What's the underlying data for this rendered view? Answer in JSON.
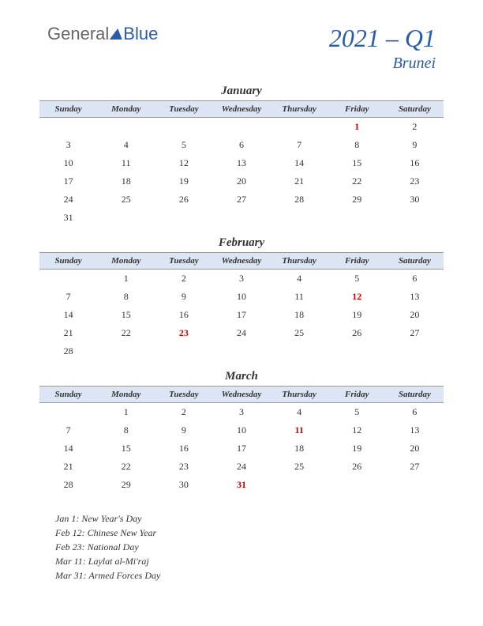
{
  "logo": {
    "text1": "General",
    "text2": "Blue"
  },
  "title": {
    "main": "2021 – Q1",
    "sub": "Brunei"
  },
  "colors": {
    "brand": "#2a5caa",
    "header_bg": "#dbe5f4",
    "holiday": "#cc0000",
    "text": "#333333",
    "border": "#999999"
  },
  "day_headers": [
    "Sunday",
    "Monday",
    "Tuesday",
    "Wednesday",
    "Thursday",
    "Friday",
    "Saturday"
  ],
  "months": [
    {
      "name": "January",
      "weeks": [
        [
          "",
          "",
          "",
          "",
          "",
          "1",
          "2"
        ],
        [
          "3",
          "4",
          "5",
          "6",
          "7",
          "8",
          "9"
        ],
        [
          "10",
          "11",
          "12",
          "13",
          "14",
          "15",
          "16"
        ],
        [
          "17",
          "18",
          "19",
          "20",
          "21",
          "22",
          "23"
        ],
        [
          "24",
          "25",
          "26",
          "27",
          "28",
          "29",
          "30"
        ],
        [
          "31",
          "",
          "",
          "",
          "",
          "",
          ""
        ]
      ],
      "holidays": [
        "1"
      ]
    },
    {
      "name": "February",
      "weeks": [
        [
          "",
          "1",
          "2",
          "3",
          "4",
          "5",
          "6"
        ],
        [
          "7",
          "8",
          "9",
          "10",
          "11",
          "12",
          "13"
        ],
        [
          "14",
          "15",
          "16",
          "17",
          "18",
          "19",
          "20"
        ],
        [
          "21",
          "22",
          "23",
          "24",
          "25",
          "26",
          "27"
        ],
        [
          "28",
          "",
          "",
          "",
          "",
          "",
          ""
        ]
      ],
      "holidays": [
        "12",
        "23"
      ]
    },
    {
      "name": "March",
      "weeks": [
        [
          "",
          "1",
          "2",
          "3",
          "4",
          "5",
          "6"
        ],
        [
          "7",
          "8",
          "9",
          "10",
          "11",
          "12",
          "13"
        ],
        [
          "14",
          "15",
          "16",
          "17",
          "18",
          "19",
          "20"
        ],
        [
          "21",
          "22",
          "23",
          "24",
          "25",
          "26",
          "27"
        ],
        [
          "28",
          "29",
          "30",
          "31",
          "",
          "",
          ""
        ]
      ],
      "holidays": [
        "11",
        "31"
      ]
    }
  ],
  "holiday_list": [
    "Jan 1: New Year's Day",
    "Feb 12: Chinese New Year",
    "Feb 23: National Day",
    "Mar 11: Laylat al-Mi'raj",
    "Mar 31: Armed Forces Day"
  ]
}
